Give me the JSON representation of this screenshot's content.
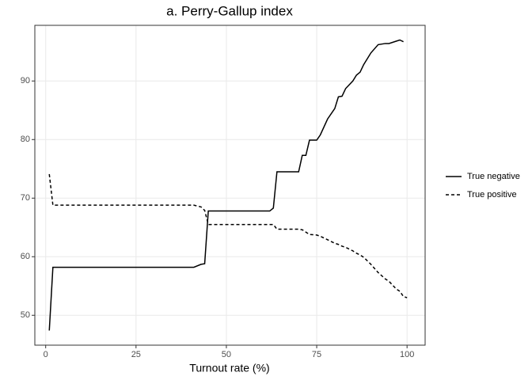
{
  "chart_data": {
    "type": "line",
    "title": "a. Perry-Gallup index",
    "x_label": "Turnout rate (%)",
    "x": [
      1,
      2,
      41,
      43,
      44,
      45,
      62,
      63,
      64,
      69,
      70,
      71,
      72,
      73,
      75,
      76,
      78,
      80,
      81,
      82,
      83,
      85,
      86,
      87,
      88,
      90,
      92,
      94,
      95,
      97,
      98,
      99,
      100
    ],
    "series": [
      {
        "name": "True negative",
        "color": "#000000",
        "dash": "solid",
        "values": [
          47.4,
          58.2,
          58.2,
          58.7,
          58.8,
          67.8,
          67.8,
          68.3,
          74.5,
          74.5,
          74.5,
          77.3,
          77.3,
          79.9,
          79.9,
          80.8,
          83.5,
          85.3,
          87.3,
          87.4,
          88.7,
          90.0,
          91.0,
          91.5,
          92.8,
          94.8,
          96.2,
          96.4,
          96.4,
          96.8,
          97.0,
          96.7,
          null
        ]
      },
      {
        "name": "True positive",
        "color": "#000000",
        "dash": "dashed",
        "values": [
          74.1,
          68.8,
          68.8,
          68.5,
          67.9,
          65.5,
          65.5,
          65.5,
          64.7,
          64.7,
          64.7,
          64.6,
          64.2,
          63.8,
          63.7,
          63.5,
          62.9,
          62.3,
          62.1,
          61.8,
          61.6,
          61.0,
          60.6,
          60.3,
          59.9,
          58.7,
          57.3,
          56.2,
          55.8,
          54.5,
          54.1,
          53.2,
          53.0
        ]
      }
    ],
    "xlim": [
      -3,
      105
    ],
    "ylim": [
      44.9,
      99.5
    ],
    "xticks": [
      0,
      25,
      50,
      75,
      100
    ],
    "yticks": [
      50,
      60,
      70,
      80,
      90
    ],
    "grid": true,
    "legend": "right"
  }
}
